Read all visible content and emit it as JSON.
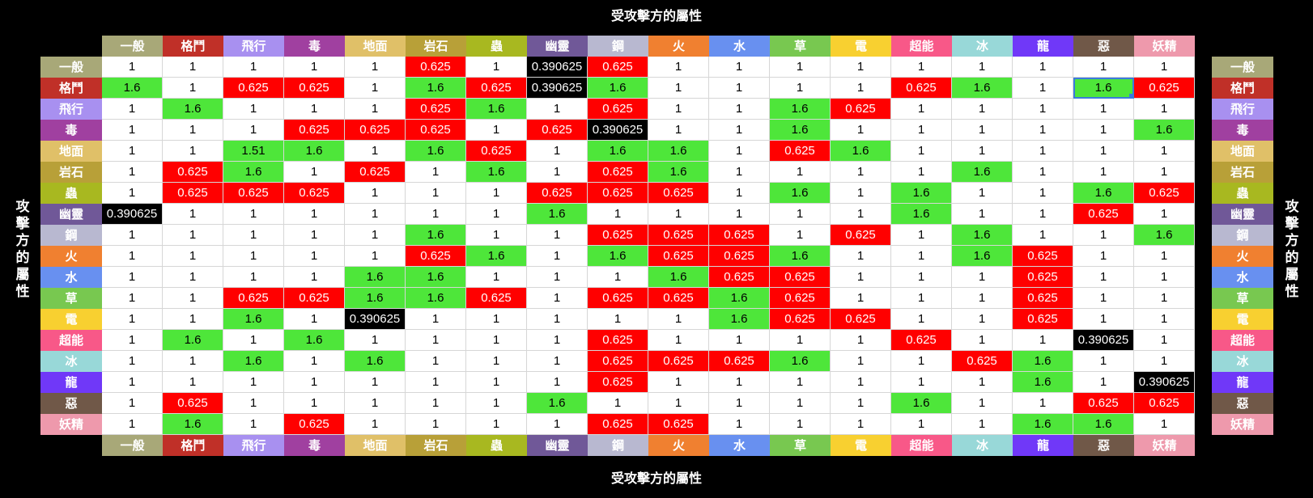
{
  "titles": {
    "top": "受攻擊方的屬性",
    "bottom": "受攻擊方的屬性",
    "left": "攻擊方的屬性",
    "right": "攻擊方的屬性"
  },
  "types": [
    {
      "name": "一般",
      "color": "#a8a878"
    },
    {
      "name": "格鬥",
      "color": "#c03028"
    },
    {
      "name": "飛行",
      "color": "#a890f0"
    },
    {
      "name": "毒",
      "color": "#a040a0"
    },
    {
      "name": "地面",
      "color": "#e0c068"
    },
    {
      "name": "岩石",
      "color": "#b8a038"
    },
    {
      "name": "蟲",
      "color": "#a8b820"
    },
    {
      "name": "幽靈",
      "color": "#705898"
    },
    {
      "name": "鋼",
      "color": "#b8b8d0"
    },
    {
      "name": "火",
      "color": "#f08030"
    },
    {
      "name": "水",
      "color": "#6890f0"
    },
    {
      "name": "草",
      "color": "#78c850"
    },
    {
      "name": "電",
      "color": "#f8d030"
    },
    {
      "name": "超能",
      "color": "#f85888"
    },
    {
      "name": "冰",
      "color": "#98d8d8"
    },
    {
      "name": "龍",
      "color": "#7038f8"
    },
    {
      "name": "惡",
      "color": "#705848"
    },
    {
      "name": "妖精",
      "color": "#ee99ac"
    }
  ],
  "value_colors": {
    "1": "neutral",
    "1.6": "strong",
    "1.51": "strong",
    "0.625": "weak",
    "0.390625": "immune"
  },
  "selected_cell": [
    1,
    16
  ],
  "matrix": [
    [
      "1",
      "1",
      "1",
      "1",
      "1",
      "0.625",
      "1",
      "0.390625",
      "0.625",
      "1",
      "1",
      "1",
      "1",
      "1",
      "1",
      "1",
      "1",
      "1"
    ],
    [
      "1.6",
      "1",
      "0.625",
      "0.625",
      "1",
      "1.6",
      "0.625",
      "0.390625",
      "1.6",
      "1",
      "1",
      "1",
      "1",
      "0.625",
      "1.6",
      "1",
      "1.6",
      "0.625"
    ],
    [
      "1",
      "1.6",
      "1",
      "1",
      "1",
      "0.625",
      "1.6",
      "1",
      "0.625",
      "1",
      "1",
      "1.6",
      "0.625",
      "1",
      "1",
      "1",
      "1",
      "1"
    ],
    [
      "1",
      "1",
      "1",
      "0.625",
      "0.625",
      "0.625",
      "1",
      "0.625",
      "0.390625",
      "1",
      "1",
      "1.6",
      "1",
      "1",
      "1",
      "1",
      "1",
      "1.6"
    ],
    [
      "1",
      "1",
      "1.51",
      "1.6",
      "1",
      "1.6",
      "0.625",
      "1",
      "1.6",
      "1.6",
      "1",
      "0.625",
      "1.6",
      "1",
      "1",
      "1",
      "1",
      "1"
    ],
    [
      "1",
      "0.625",
      "1.6",
      "1",
      "0.625",
      "1",
      "1.6",
      "1",
      "0.625",
      "1.6",
      "1",
      "1",
      "1",
      "1",
      "1.6",
      "1",
      "1",
      "1"
    ],
    [
      "1",
      "0.625",
      "0.625",
      "0.625",
      "1",
      "1",
      "1",
      "0.625",
      "0.625",
      "0.625",
      "1",
      "1.6",
      "1",
      "1.6",
      "1",
      "1",
      "1.6",
      "0.625"
    ],
    [
      "0.390625",
      "1",
      "1",
      "1",
      "1",
      "1",
      "1",
      "1.6",
      "1",
      "1",
      "1",
      "1",
      "1",
      "1.6",
      "1",
      "1",
      "0.625",
      "1"
    ],
    [
      "1",
      "1",
      "1",
      "1",
      "1",
      "1.6",
      "1",
      "1",
      "0.625",
      "0.625",
      "0.625",
      "1",
      "0.625",
      "1",
      "1.6",
      "1",
      "1",
      "1.6"
    ],
    [
      "1",
      "1",
      "1",
      "1",
      "1",
      "0.625",
      "1.6",
      "1",
      "1.6",
      "0.625",
      "0.625",
      "1.6",
      "1",
      "1",
      "1.6",
      "0.625",
      "1",
      "1"
    ],
    [
      "1",
      "1",
      "1",
      "1",
      "1.6",
      "1.6",
      "1",
      "1",
      "1",
      "1.6",
      "0.625",
      "0.625",
      "1",
      "1",
      "1",
      "0.625",
      "1",
      "1"
    ],
    [
      "1",
      "1",
      "0.625",
      "0.625",
      "1.6",
      "1.6",
      "0.625",
      "1",
      "0.625",
      "0.625",
      "1.6",
      "0.625",
      "1",
      "1",
      "1",
      "0.625",
      "1",
      "1"
    ],
    [
      "1",
      "1",
      "1.6",
      "1",
      "0.390625",
      "1",
      "1",
      "1",
      "1",
      "1",
      "1.6",
      "0.625",
      "0.625",
      "1",
      "1",
      "0.625",
      "1",
      "1"
    ],
    [
      "1",
      "1.6",
      "1",
      "1.6",
      "1",
      "1",
      "1",
      "1",
      "0.625",
      "1",
      "1",
      "1",
      "1",
      "0.625",
      "1",
      "1",
      "0.390625",
      "1"
    ],
    [
      "1",
      "1",
      "1.6",
      "1",
      "1.6",
      "1",
      "1",
      "1",
      "0.625",
      "0.625",
      "0.625",
      "1.6",
      "1",
      "1",
      "0.625",
      "1.6",
      "1",
      "1"
    ],
    [
      "1",
      "1",
      "1",
      "1",
      "1",
      "1",
      "1",
      "1",
      "0.625",
      "1",
      "1",
      "1",
      "1",
      "1",
      "1",
      "1.6",
      "1",
      "0.390625"
    ],
    [
      "1",
      "0.625",
      "1",
      "1",
      "1",
      "1",
      "1",
      "1.6",
      "1",
      "1",
      "1",
      "1",
      "1",
      "1.6",
      "1",
      "1",
      "0.625",
      "0.625"
    ],
    [
      "1",
      "1.6",
      "1",
      "0.625",
      "1",
      "1",
      "1",
      "1",
      "0.625",
      "0.625",
      "1",
      "1",
      "1",
      "1",
      "1",
      "1.6",
      "1.6",
      "1"
    ]
  ]
}
